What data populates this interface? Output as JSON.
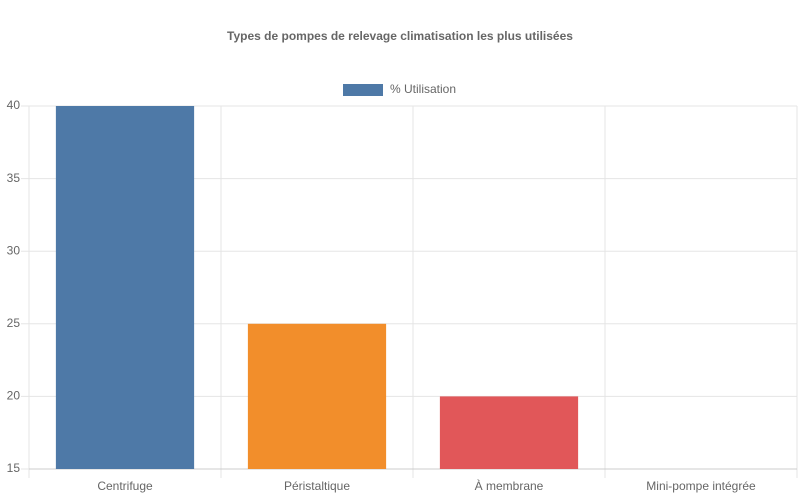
{
  "chart_data": {
    "type": "bar",
    "title": "Types de pompes de relevage climatisation les plus utilisées",
    "categories": [
      "Centrifuge",
      "Péristaltique",
      "À membrane",
      "Mini-pompe intégrée"
    ],
    "series": [
      {
        "name": "% Utilisation",
        "color": [
          "#4e79a7",
          "#f28e2b",
          "#e15759",
          "#76b7b2"
        ],
        "values": [
          40,
          25,
          20,
          15
        ]
      }
    ],
    "ylim": [
      15,
      40
    ],
    "yticks": [
      15,
      20,
      25,
      30,
      35,
      40
    ],
    "grid": true
  }
}
